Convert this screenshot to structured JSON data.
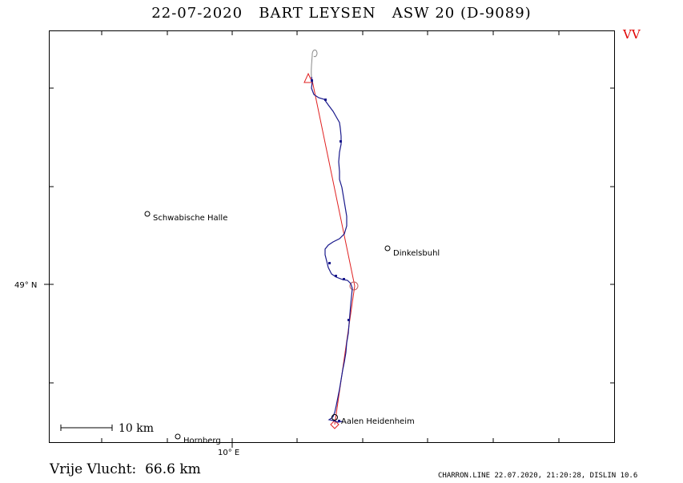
{
  "header": {
    "title": "22-07-2020   BART LEYSEN   ASW 20 (D-9089)",
    "badge": "VV"
  },
  "map": {
    "latitude_label": "49° N",
    "longitude_label": "10° E",
    "scale_label": "10 km",
    "places": [
      {
        "name": "Schwabische Halle"
      },
      {
        "name": "Dinkelsbuhl"
      },
      {
        "name": "Aalen Heidenheim"
      },
      {
        "name": "Hornberg"
      }
    ],
    "colors": {
      "track": "#1a1a8c",
      "task": "#e02020",
      "frame": "#000000",
      "badge": "#e00000"
    }
  },
  "summary": {
    "label": "Vrije Vlucht:",
    "distance": "66.6 km"
  },
  "footer": {
    "text": "CHARRON.LINE 22.07.2020, 21:20:28, DISLIN 10.6"
  }
}
